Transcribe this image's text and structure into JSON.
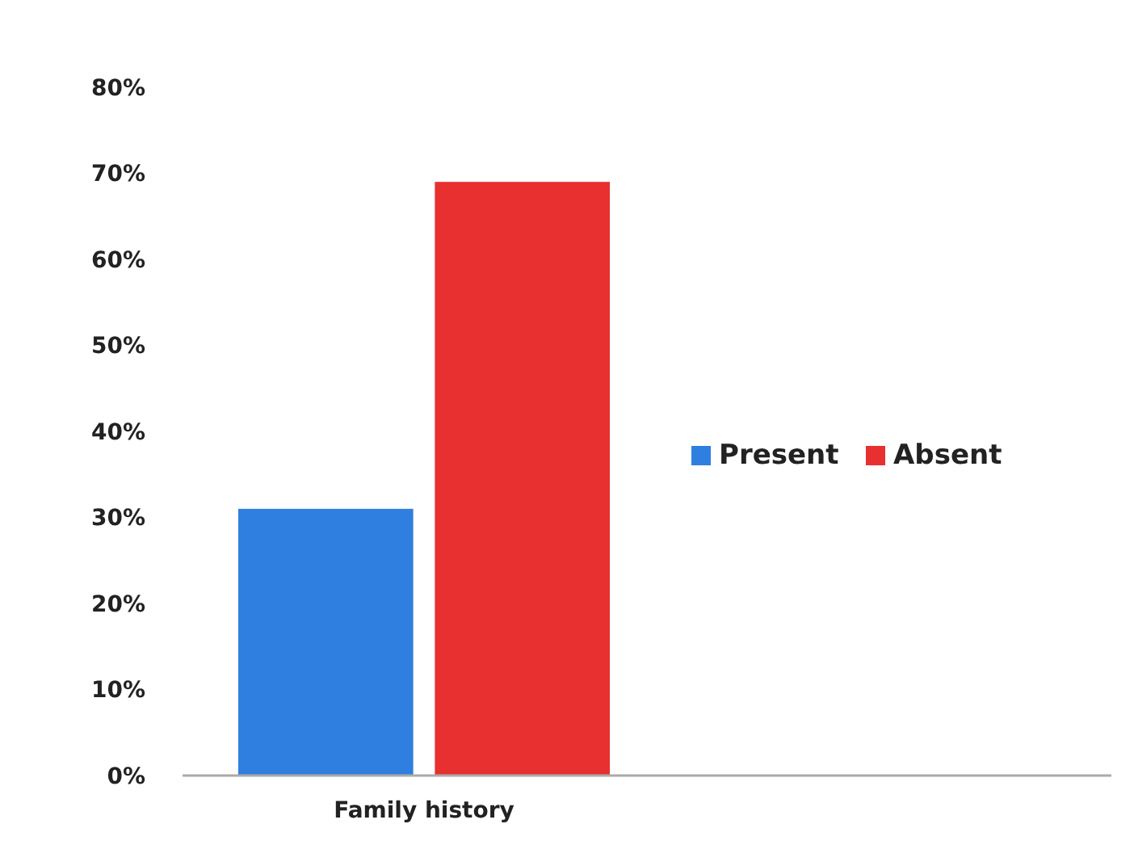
{
  "chart_data": {
    "type": "bar",
    "categories": [
      "Family history"
    ],
    "series": [
      {
        "name": "Present",
        "color": "#2e7fe0",
        "values": [
          31
        ]
      },
      {
        "name": "Absent",
        "color": "#e83030",
        "values": [
          69
        ]
      }
    ],
    "ylim": [
      0,
      80
    ],
    "yticks": [
      {
        "value": 0,
        "label": "0%"
      },
      {
        "value": 10,
        "label": "10%"
      },
      {
        "value": 20,
        "label": "20%"
      },
      {
        "value": 30,
        "label": "30%"
      },
      {
        "value": 40,
        "label": "40%"
      },
      {
        "value": 50,
        "label": "50%"
      },
      {
        "value": 60,
        "label": "60%"
      },
      {
        "value": 70,
        "label": "70%"
      },
      {
        "value": 80,
        "label": "80%"
      }
    ],
    "legend": "right",
    "grid": false
  }
}
